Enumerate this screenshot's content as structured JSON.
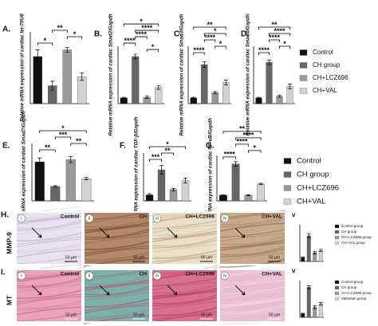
{
  "legends": [
    {
      "entries": [
        {
          "name": "Control",
          "color": "#111111"
        },
        {
          "name": "CH group",
          "color": "#666666"
        },
        {
          "name": "CH+LCZ696",
          "color": "#9a9a9a"
        },
        {
          "name": "CH+VAL",
          "color": "#d2d2d2"
        }
      ]
    },
    {
      "entries": [
        {
          "name": "Control",
          "color": "#111111"
        },
        {
          "name": "CH group",
          "color": "#666666"
        },
        {
          "name": "CH+LCZ696",
          "color": "#9a9a9a"
        },
        {
          "name": "CH+VAL",
          "color": "#d2d2d2"
        }
      ]
    }
  ],
  "chart_data": [
    {
      "type": "bar",
      "label": "A.",
      "y_label": "Relative mRNA expression of cardiac let-7f/U6",
      "values": [
        1.05,
        0.4,
        1.2,
        0.6
      ],
      "errors": [
        0.15,
        0.1,
        0.05,
        0.08
      ],
      "ylim": [
        0,
        1.6
      ],
      "significance": [
        {
          "pair": [
            0,
            1
          ],
          "label": "*"
        },
        {
          "pair": [
            2,
            3
          ],
          "label": "*"
        },
        {
          "pair": [
            1,
            2
          ],
          "label": "**"
        }
      ]
    },
    {
      "type": "bar",
      "label": "B.",
      "y_label": "Relative mRNA expression of cardiac Smad2/Gapdh",
      "values": [
        1,
        8.2,
        1.1,
        2.8
      ],
      "errors": [
        0.1,
        0.4,
        0.2,
        0.3
      ],
      "ylim": [
        0,
        10
      ],
      "significance": [
        {
          "pair": [
            2,
            3
          ],
          "label": "*"
        },
        {
          "pair": [
            0,
            1
          ],
          "label": "****"
        },
        {
          "pair": [
            1,
            2
          ],
          "label": "****"
        },
        {
          "pair": [
            1,
            3
          ],
          "label": "****"
        },
        {
          "pair": [
            0,
            3
          ],
          "label": "*"
        }
      ]
    },
    {
      "type": "bar",
      "label": "C.",
      "y_label": "Relative mRNA expression of cardiac Smad3/Gapdh",
      "values": [
        1,
        6.8,
        1.9,
        3.7
      ],
      "errors": [
        0.1,
        0.5,
        0.2,
        0.4
      ],
      "ylim": [
        0,
        10
      ],
      "significance": [
        {
          "pair": [
            0,
            1
          ],
          "label": "****"
        },
        {
          "pair": [
            2,
            3
          ],
          "label": "*"
        },
        {
          "pair": [
            1,
            2
          ],
          "label": "****"
        },
        {
          "pair": [
            1,
            3
          ],
          "label": "*"
        },
        {
          "pair": [
            0,
            3
          ],
          "label": "**"
        }
      ]
    },
    {
      "type": "bar",
      "label": "D.",
      "y_label": "Relative mRNA expression of cardiac Smad4/Gapdh",
      "values": [
        1,
        7.2,
        1.3,
        3.0
      ],
      "errors": [
        0.1,
        0.4,
        0.2,
        0.4
      ],
      "ylim": [
        0,
        10
      ],
      "significance": [
        {
          "pair": [
            0,
            1
          ],
          "label": "****"
        },
        {
          "pair": [
            2,
            3
          ],
          "label": "*"
        },
        {
          "pair": [
            1,
            2
          ],
          "label": "****"
        },
        {
          "pair": [
            1,
            3
          ],
          "label": "****"
        },
        {
          "pair": [
            0,
            3
          ],
          "label": "**"
        }
      ]
    },
    {
      "type": "bar",
      "label": "E.",
      "y_label": "Relative mRNA expression of cardiac Smad7/Gapdh",
      "values": [
        1.02,
        0.38,
        1.08,
        0.58
      ],
      "errors": [
        0.1,
        0.02,
        0.08,
        0.03
      ],
      "ylim": [
        0,
        1.5
      ],
      "significance": [
        {
          "pair": [
            0,
            1
          ],
          "label": "**"
        },
        {
          "pair": [
            2,
            3
          ],
          "label": "**"
        },
        {
          "pair": [
            1,
            2
          ],
          "label": "***"
        },
        {
          "pair": [
            0,
            3
          ],
          "label": "*"
        }
      ]
    },
    {
      "type": "bar",
      "label": "F.",
      "y_label": "Relative mRNA expression of cardiac TGF-β/Gapdh",
      "values": [
        1,
        5.2,
        1.9,
        3.4
      ],
      "errors": [
        0.2,
        0.7,
        0.2,
        0.4
      ],
      "ylim": [
        0,
        8
      ],
      "significance": [
        {
          "pair": [
            0,
            1
          ],
          "label": "***"
        },
        {
          "pair": [
            1,
            2
          ],
          "label": "**"
        },
        {
          "pair": [
            0,
            3
          ],
          "label": "*"
        }
      ]
    },
    {
      "type": "bar",
      "label": "G.",
      "y_label": "Relative mRNA expression of cardiac NF-κB/Gapdh",
      "values": [
        1,
        6.5,
        1.0,
        3.0
      ],
      "errors": [
        0.1,
        0.4,
        0.1,
        0.1
      ],
      "ylim": [
        0,
        8
      ],
      "significance": [
        {
          "pair": [
            0,
            1
          ],
          "label": "****"
        },
        {
          "pair": [
            2,
            3
          ],
          "label": "*"
        },
        {
          "pair": [
            1,
            2
          ],
          "label": "****"
        },
        {
          "pair": [
            1,
            3
          ],
          "label": "****"
        },
        {
          "pair": [
            0,
            3
          ],
          "label": "**"
        }
      ]
    },
    {
      "type": "bar",
      "label": "v",
      "values": [
        1,
        7,
        2.4,
        3
      ],
      "errors": [
        0.2,
        0.6,
        0.3,
        0.3
      ],
      "ylim": [
        0,
        10
      ],
      "legend_entries": [
        "Control group",
        "CH group",
        "CH+LCZ696 group",
        "CH+VAL group"
      ]
    },
    {
      "type": "bar",
      "label": "v",
      "values": [
        1,
        9,
        3,
        4
      ],
      "errors": [
        0.2,
        0.5,
        0.4,
        0.4
      ],
      "ylim": [
        0,
        11
      ],
      "legend_entries": [
        "Control group",
        "CH group",
        "CH+LCZ696 group",
        "Valsartan group"
      ]
    }
  ],
  "micrographs": [
    {
      "label": "H.",
      "stain": "MMP-9",
      "panels": [
        {
          "index": "i",
          "title": "Control",
          "scale": "50 µm"
        },
        {
          "index": "ii",
          "title": "CH",
          "scale": "50 µm"
        },
        {
          "index": "iii",
          "title": "CH+LCZ696",
          "scale": "50 µm"
        },
        {
          "index": "iv",
          "title": "CH+VAL",
          "scale": "50 µm"
        }
      ]
    },
    {
      "label": "I.",
      "stain": "MT",
      "panels": [
        {
          "index": "i",
          "title": "Control",
          "scale": "50 µm"
        },
        {
          "index": "ii",
          "title": "CH",
          "scale": "50 µm"
        },
        {
          "index": "iii",
          "title": "CH+LCZ696",
          "scale": "50 µm"
        },
        {
          "index": "iv",
          "title": "CH+VAL",
          "scale": "50 µm"
        }
      ]
    }
  ]
}
